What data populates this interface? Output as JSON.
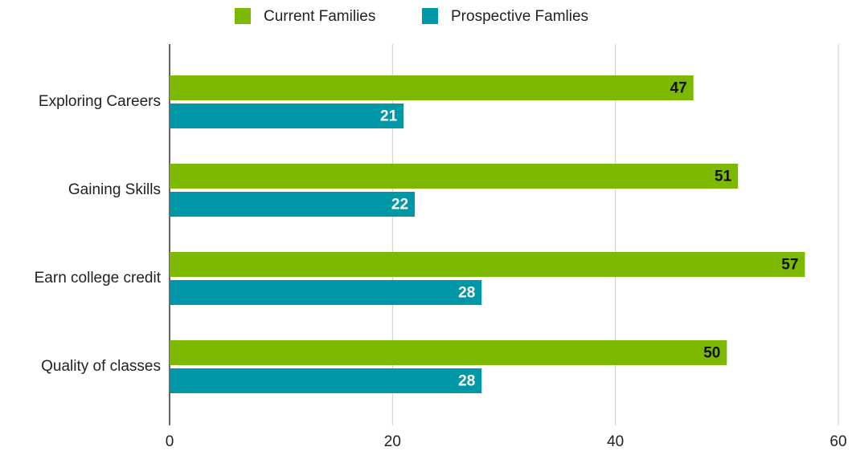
{
  "chart_data": {
    "type": "hbar",
    "categories": [
      "Exploring Careers",
      "Gaining Skills",
      "Earn college credit",
      "Quality of classes"
    ],
    "series": [
      {
        "name": "Current Families",
        "color": "#7cb900",
        "values": [
          47,
          51,
          57,
          50
        ]
      },
      {
        "name": "Prospective Famlies",
        "color": "#0097a7",
        "values": [
          21,
          22,
          28,
          28
        ]
      }
    ],
    "xlim": [
      0,
      60
    ],
    "xticks": [
      0,
      20,
      40,
      60
    ],
    "grid": true,
    "legend": "top"
  }
}
